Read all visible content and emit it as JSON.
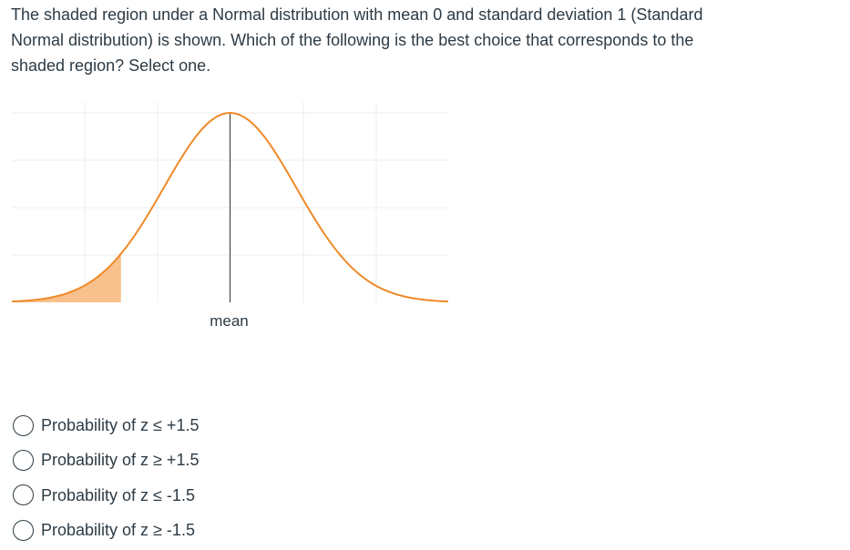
{
  "question": {
    "text": "The shaded region under a Normal distribution with mean 0 and standard deviation 1 (Standard Normal distribution) is shown. Which of the following is the best choice that corresponds to the shaded region? Select one."
  },
  "chart_data": {
    "type": "area",
    "distribution": "standard normal",
    "mean": 0,
    "sd": 1,
    "x_range": [
      -3.3,
      3.3
    ],
    "shaded_region": {
      "from": -3.3,
      "to": -1.65
    },
    "mean_label": "mean",
    "grid": true,
    "colors": {
      "curve": "#ef8a28",
      "shade": "#f8c08c",
      "mean_line": "#333333",
      "grid": "#ececec"
    }
  },
  "options": [
    {
      "label": "Probability of z ≤ +1.5"
    },
    {
      "label": "Probability of z ≥ +1.5"
    },
    {
      "label": "Probability of z ≤ -1.5"
    },
    {
      "label": "Probability of z ≥ -1.5"
    }
  ]
}
